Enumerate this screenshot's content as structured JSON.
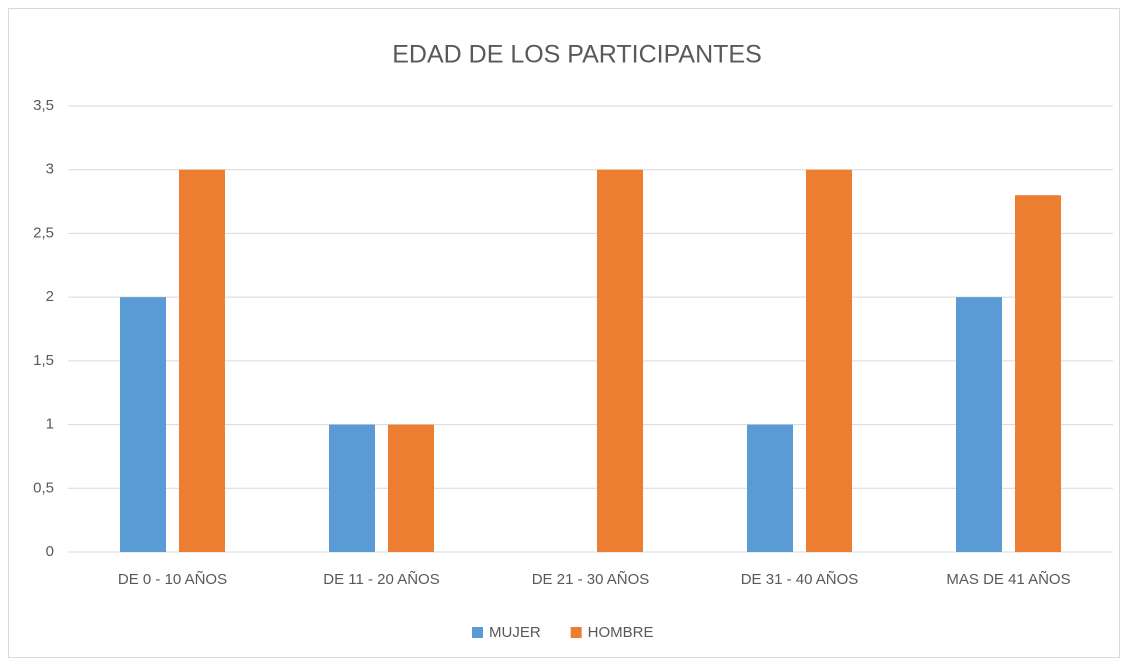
{
  "chart_data": {
    "type": "bar",
    "title": "EDAD DE LOS PARTICIPANTES",
    "categories": [
      "DE 0 - 10 AÑOS",
      "DE 11 - 20 AÑOS",
      "DE 21 - 30 AÑOS",
      "DE 31 - 40 AÑOS",
      "MAS DE 41 AÑOS"
    ],
    "series": [
      {
        "name": "MUJER",
        "color": "#5b9bd5",
        "values": [
          2,
          1,
          0,
          1,
          2
        ]
      },
      {
        "name": "HOMBRE",
        "color": "#ed7d31",
        "values": [
          3,
          1,
          3,
          3,
          2.8
        ]
      }
    ],
    "ylim": [
      0,
      3.5
    ],
    "yticks": [
      0,
      {
        "value": 0.5,
        "label": "0,5"
      },
      1,
      {
        "value": 1.5,
        "label": "1,5"
      },
      2,
      {
        "value": 2.5,
        "label": "2,5"
      },
      3,
      {
        "value": 3.5,
        "label": "3,5"
      }
    ],
    "grid": true,
    "legend": "bottom"
  }
}
